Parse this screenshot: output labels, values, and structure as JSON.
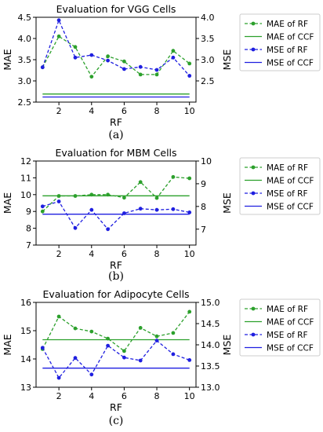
{
  "chart_data": [
    {
      "type": "line",
      "title": "Evaluation for VGG Cells",
      "caption": "(a)",
      "xlabel": "RF",
      "ylabel_left": "MAE",
      "ylabel_right": "MSE",
      "x": [
        1,
        2,
        3,
        4,
        5,
        6,
        7,
        8,
        9,
        10
      ],
      "x_ticks": [
        "2",
        "4",
        "6",
        "8",
        "10"
      ],
      "xlim": [
        0.6,
        10.4
      ],
      "ylim_left": [
        2.5,
        4.5
      ],
      "left_ticks": [
        "2.5",
        "3.0",
        "3.5",
        "4.0",
        "4.5"
      ],
      "ylim_right": [
        2.0,
        4.0
      ],
      "right_ticks": [
        "2.5",
        "3.0",
        "3.5",
        "4.0"
      ],
      "series": [
        {
          "name": "MAE of RF",
          "axis": "left",
          "style": "dashed-marker",
          "color": "#2ca02c",
          "values": [
            3.32,
            4.05,
            3.8,
            3.1,
            3.58,
            3.46,
            3.15,
            3.15,
            3.71,
            3.41
          ]
        },
        {
          "name": "MAE of CCF",
          "axis": "left",
          "style": "solid",
          "color": "#2ca02c",
          "values": [
            2.69,
            2.69,
            2.69,
            2.69,
            2.69,
            2.69,
            2.69,
            2.69,
            2.69,
            2.69
          ]
        },
        {
          "name": "MSE of RF",
          "axis": "right",
          "style": "dashed-marker",
          "color": "#1f1fe0",
          "values": [
            2.82,
            3.93,
            3.05,
            3.11,
            2.98,
            2.78,
            2.83,
            2.76,
            3.05,
            2.62
          ]
        },
        {
          "name": "MSE of CCF",
          "axis": "right",
          "style": "solid",
          "color": "#1f1fe0",
          "values": [
            2.12,
            2.12,
            2.12,
            2.12,
            2.12,
            2.12,
            2.12,
            2.12,
            2.12,
            2.12
          ]
        }
      ]
    },
    {
      "type": "line",
      "title": "Evaluation for MBM Cells",
      "caption": "(b)",
      "xlabel": "RF",
      "ylabel_left": "MAE",
      "ylabel_right": "MSE",
      "x": [
        1,
        2,
        3,
        4,
        5,
        6,
        7,
        8,
        9,
        10
      ],
      "x_ticks": [
        "2",
        "4",
        "6",
        "8",
        "10"
      ],
      "xlim": [
        0.6,
        10.4
      ],
      "ylim_left": [
        7,
        12
      ],
      "left_ticks": [
        "7",
        "8",
        "9",
        "10",
        "11",
        "12"
      ],
      "ylim_right": [
        6.3,
        10
      ],
      "right_ticks": [
        "7",
        "8",
        "9",
        "10"
      ],
      "series": [
        {
          "name": "MAE of RF",
          "axis": "left",
          "style": "dashed-marker",
          "color": "#2ca02c",
          "values": [
            9.0,
            9.92,
            9.92,
            10.0,
            10.0,
            9.82,
            10.75,
            9.8,
            11.05,
            10.97
          ]
        },
        {
          "name": "MAE of CCF",
          "axis": "left",
          "style": "solid",
          "color": "#2ca02c",
          "values": [
            9.93,
            9.93,
            9.93,
            9.93,
            9.93,
            9.93,
            9.93,
            9.93,
            9.93,
            9.93
          ]
        },
        {
          "name": "MSE of RF",
          "axis": "right",
          "style": "dashed-marker",
          "color": "#1f1fe0",
          "values": [
            8.0,
            8.22,
            7.05,
            7.85,
            7.0,
            7.7,
            7.9,
            7.85,
            7.88,
            7.74
          ]
        },
        {
          "name": "MSE of CCF",
          "axis": "right",
          "style": "solid",
          "color": "#1f1fe0",
          "values": [
            7.66,
            7.66,
            7.66,
            7.66,
            7.66,
            7.66,
            7.66,
            7.66,
            7.66,
            7.66
          ]
        }
      ]
    },
    {
      "type": "line",
      "title": "Evaluation for Adipocyte Cells",
      "caption": "(c)",
      "xlabel": "RF",
      "ylabel_left": "MAE",
      "ylabel_right": "MSE",
      "x": [
        1,
        2,
        3,
        4,
        5,
        6,
        7,
        8,
        9,
        10
      ],
      "x_ticks": [
        "2",
        "4",
        "6",
        "8",
        "10"
      ],
      "xlim": [
        0.6,
        10.4
      ],
      "ylim_left": [
        13,
        16
      ],
      "left_ticks": [
        "13",
        "14",
        "15",
        "16"
      ],
      "ylim_right": [
        13.0,
        15.0
      ],
      "right_ticks": [
        "13.0",
        "13.5",
        "14.0",
        "14.5",
        "15.0"
      ],
      "series": [
        {
          "name": "MAE of RF",
          "axis": "left",
          "style": "dashed-marker",
          "color": "#2ca02c",
          "values": [
            14.35,
            15.5,
            15.08,
            14.97,
            14.72,
            14.28,
            15.1,
            14.8,
            14.92,
            15.67
          ]
        },
        {
          "name": "MAE of CCF",
          "axis": "left",
          "style": "solid",
          "color": "#2ca02c",
          "values": [
            14.68,
            14.68,
            14.68,
            14.68,
            14.68,
            14.68,
            14.68,
            14.68,
            14.68,
            14.68
          ]
        },
        {
          "name": "MSE of RF",
          "axis": "right",
          "style": "dashed-marker",
          "color": "#1f1fe0",
          "values": [
            13.93,
            13.22,
            13.69,
            13.3,
            13.98,
            13.7,
            13.63,
            14.1,
            13.78,
            13.64
          ]
        },
        {
          "name": "MSE of CCF",
          "axis": "right",
          "style": "solid",
          "color": "#1f1fe0",
          "values": [
            13.45,
            13.45,
            13.45,
            13.45,
            13.45,
            13.45,
            13.45,
            13.45,
            13.45,
            13.45
          ]
        }
      ]
    }
  ]
}
